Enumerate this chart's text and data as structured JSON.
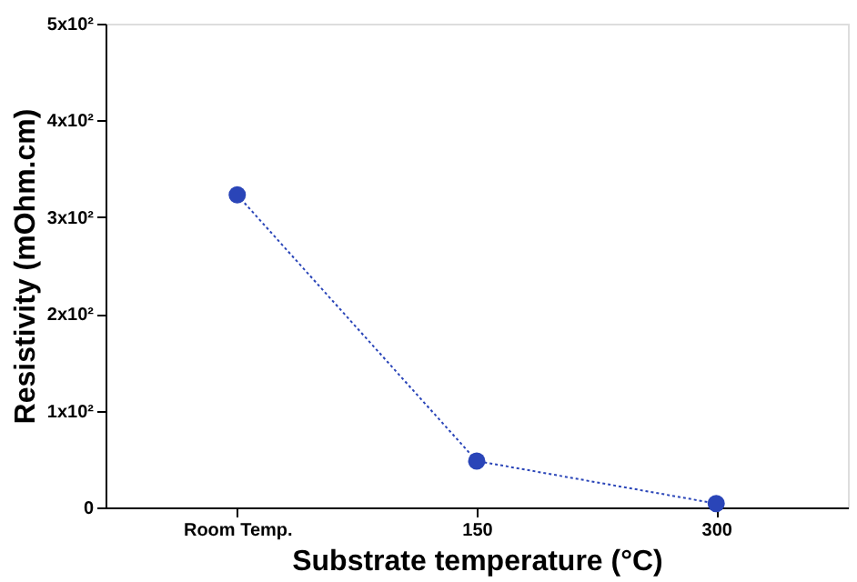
{
  "chart_data": {
    "type": "line",
    "xlabel": "Substrate temperature (°C)",
    "ylabel": "Resistivity (mOhm.cm)",
    "categories": [
      "Room Temp.",
      "150",
      "300"
    ],
    "series": [
      {
        "color": "#2a45b8",
        "values": [
          323,
          48,
          4
        ]
      }
    ],
    "ylim": [
      0,
      500
    ],
    "yticks": [
      0,
      {
        "value": 100,
        "label": "1x10²"
      },
      {
        "value": 200,
        "label": "2x10²"
      },
      {
        "value": 300,
        "label": "3x10²"
      },
      {
        "value": 400,
        "label": "4x10²"
      },
      {
        "value": 500,
        "label": "5x10²"
      }
    ],
    "marker": "circle",
    "line_style": "dotted",
    "grid": false
  }
}
